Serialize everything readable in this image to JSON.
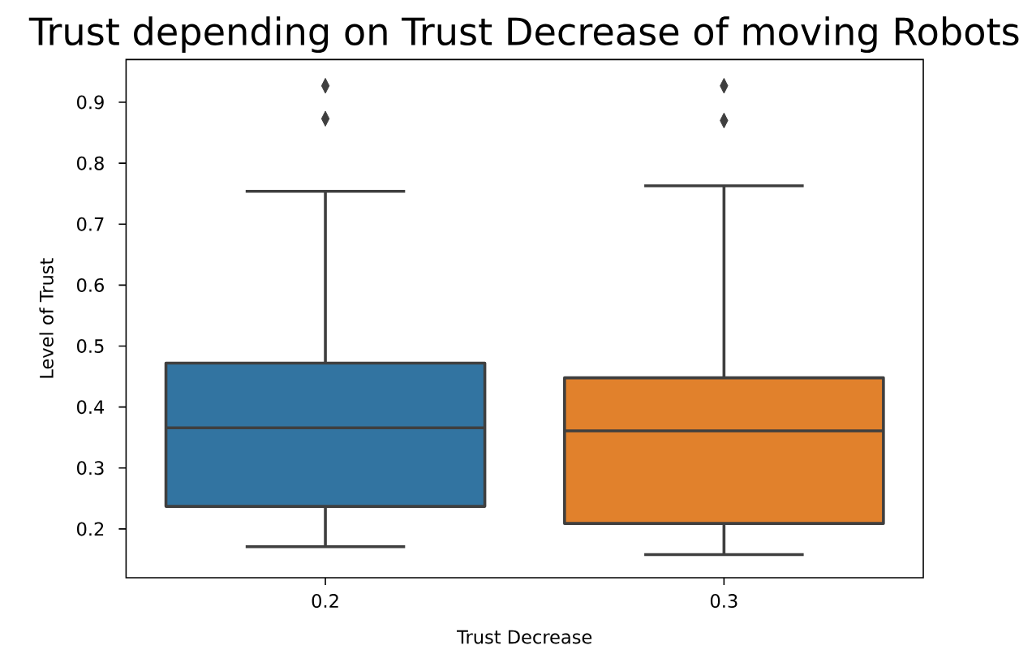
{
  "chart_data": {
    "type": "box",
    "title": "Trust depending on Trust Decrease of moving Robots",
    "xlabel": "Trust Decrease",
    "ylabel": "Level of Trust",
    "categories": [
      "0.2",
      "0.3"
    ],
    "boxes": [
      {
        "low": 0.171,
        "q1": 0.237,
        "median": 0.366,
        "q3": 0.472,
        "high": 0.754,
        "outliers": [
          0.927,
          0.873
        ]
      },
      {
        "low": 0.158,
        "q1": 0.209,
        "median": 0.361,
        "q3": 0.448,
        "high": 0.763,
        "outliers": [
          0.927,
          0.87
        ]
      }
    ],
    "colors": [
      "#3274a1",
      "#e1812c"
    ],
    "marker": "diamond",
    "ylim": [
      0.12,
      0.97
    ],
    "yticks": [
      0.2,
      0.3,
      0.4,
      0.5,
      0.6,
      0.7,
      0.8,
      0.9
    ]
  }
}
